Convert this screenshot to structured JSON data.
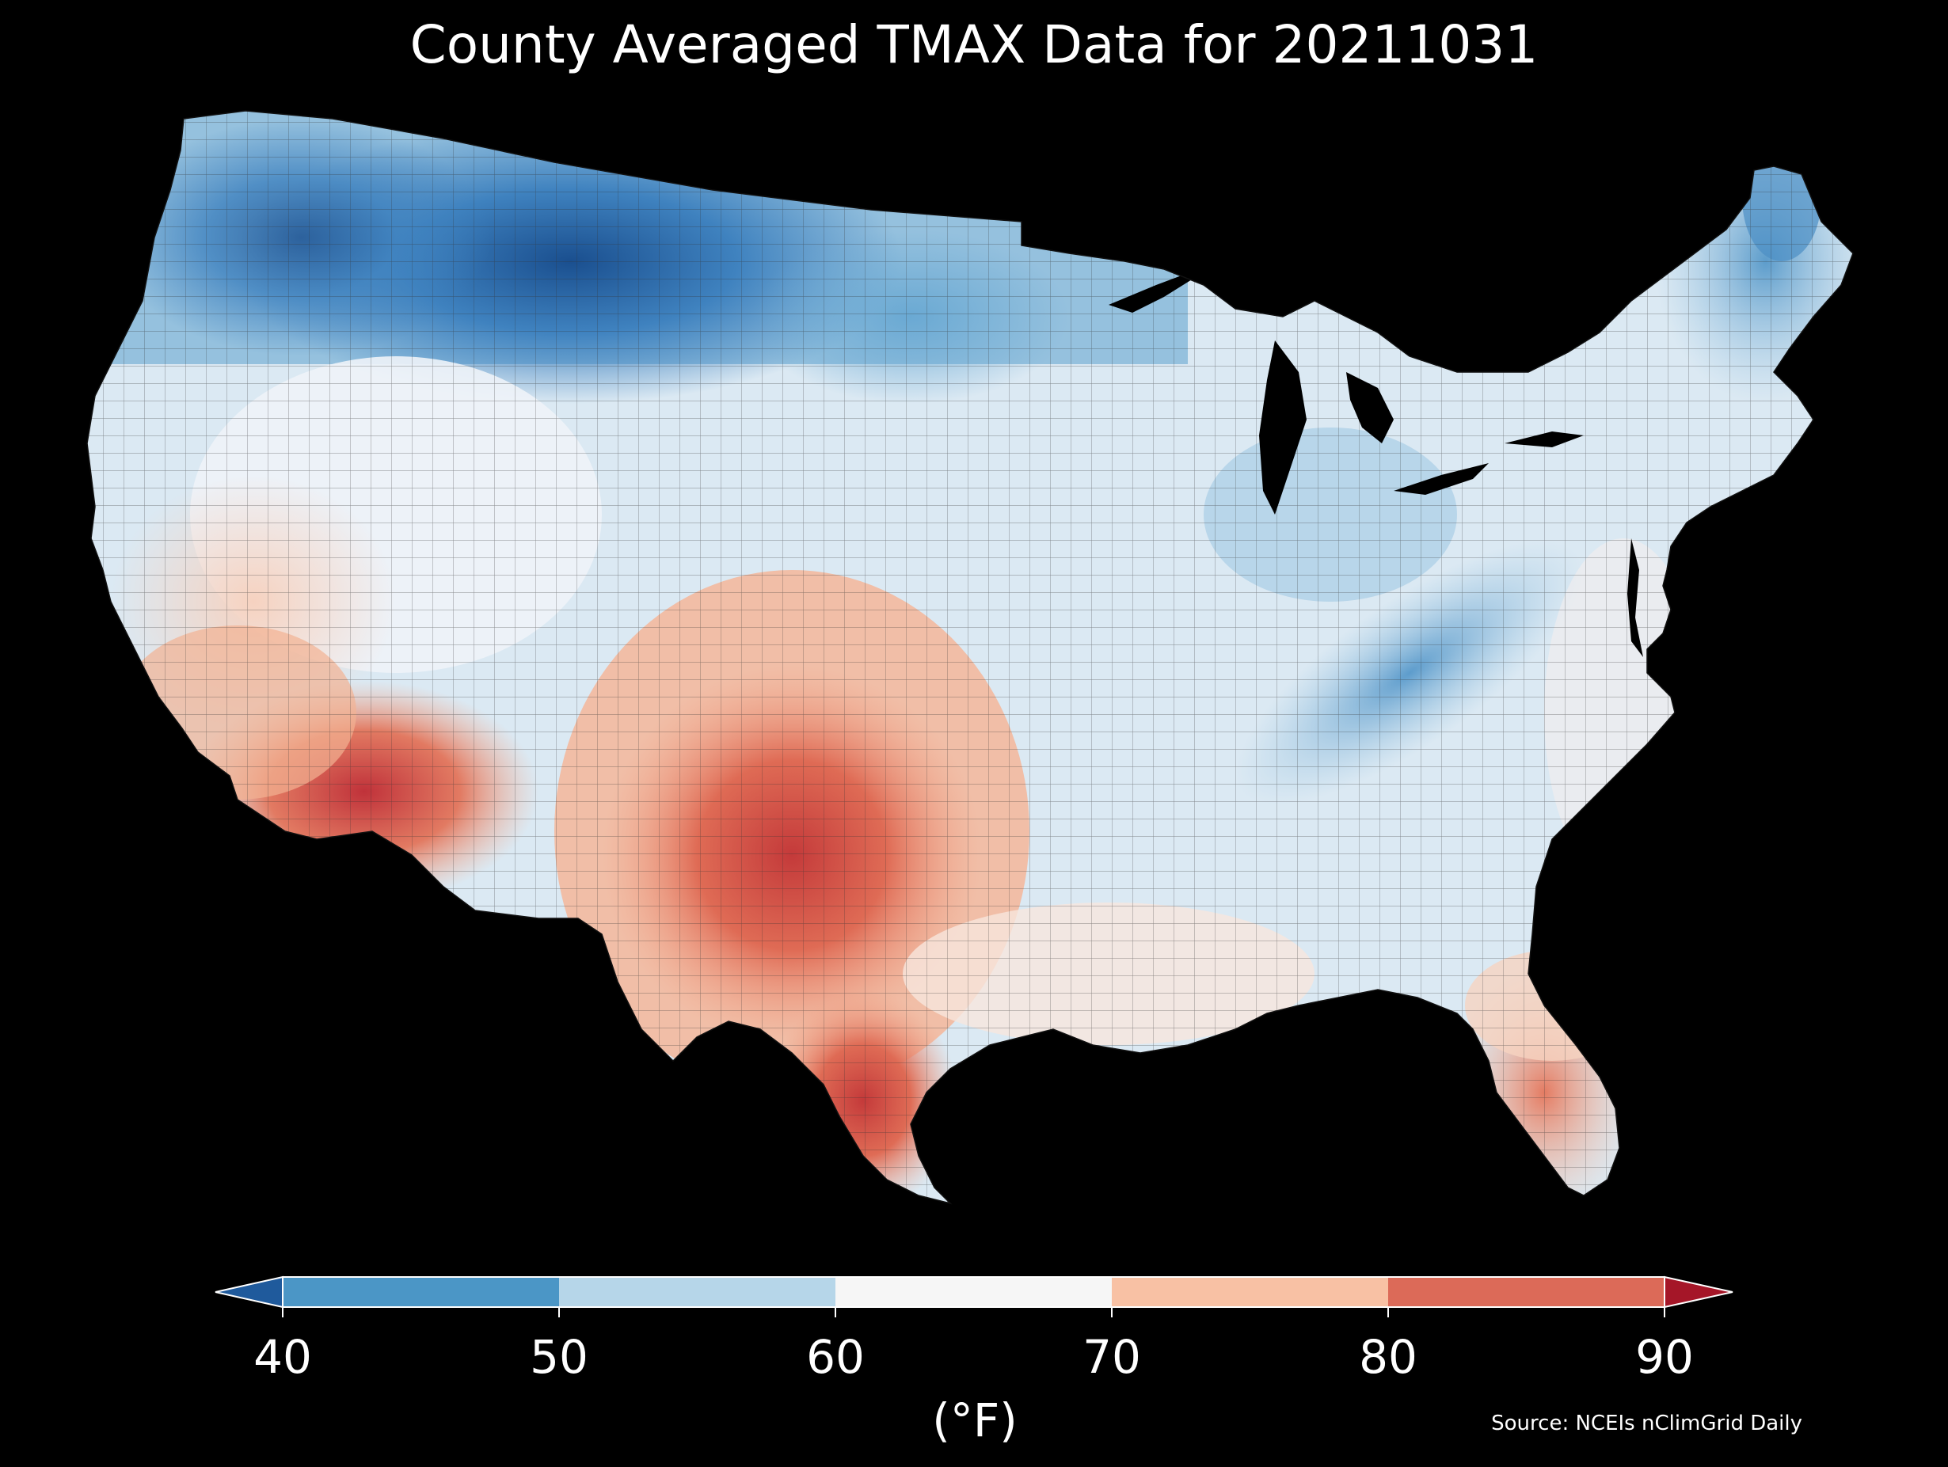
{
  "title": "County Averaged TMAX Data for 20211031",
  "source": "Source: NCEIs nClimGrid Daily",
  "colorbar": {
    "label": "(°F)",
    "ticks": [
      "40",
      "50",
      "60",
      "70",
      "80",
      "90"
    ],
    "bins": [
      {
        "range": "<40",
        "color": "#1f5a9c"
      },
      {
        "range": "40-50",
        "color": "#4b96c6"
      },
      {
        "range": "50-60",
        "color": "#b6d6e9"
      },
      {
        "range": "60-70",
        "color": "#f6f6f6"
      },
      {
        "range": "70-80",
        "color": "#f8c1a4"
      },
      {
        "range": "80-90",
        "color": "#dc6a58"
      },
      {
        "range": ">90",
        "color": "#a51628"
      }
    ]
  },
  "colors": {
    "background": "#000000",
    "text": "#ffffff",
    "county_lines": "#2a2a2a"
  }
}
